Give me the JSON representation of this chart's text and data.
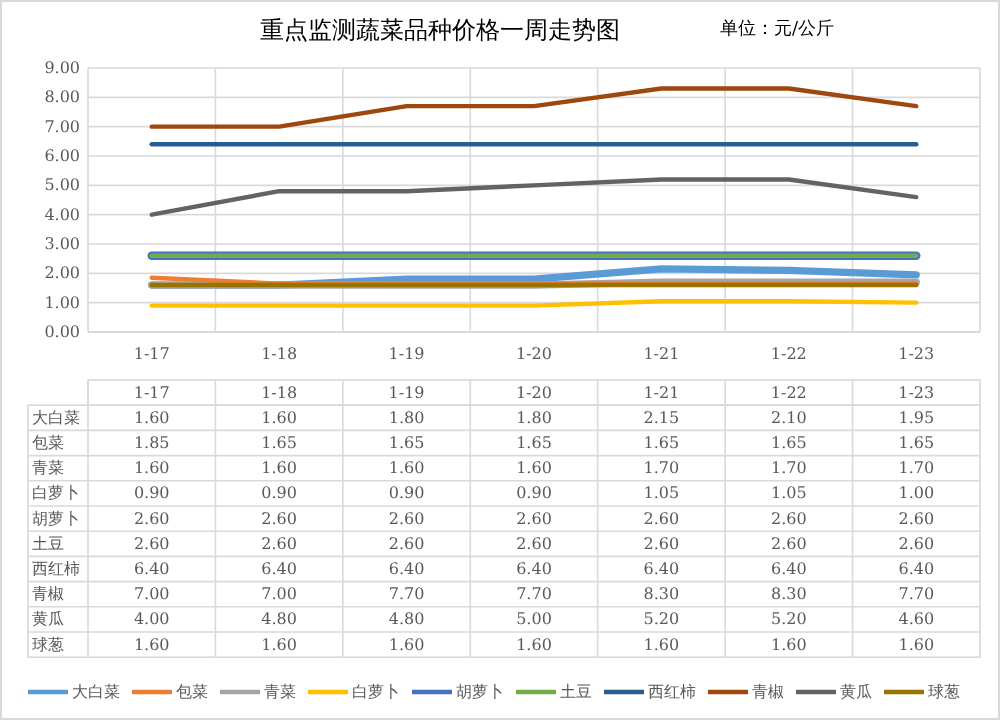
{
  "chart_data": {
    "type": "line",
    "title": "重点监测蔬菜品种价格一周走势图",
    "subtitle": "单位：元/公斤",
    "categories": [
      "1-17",
      "1-18",
      "1-19",
      "1-20",
      "1-21",
      "1-22",
      "1-23"
    ],
    "series": [
      {
        "name": "大白菜",
        "color": "#5b9bd5",
        "values": [
          1.6,
          1.6,
          1.8,
          1.8,
          2.15,
          2.1,
          1.95
        ],
        "value_labels": [
          "1.60",
          "1.60",
          "1.80",
          "1.80",
          "2.15",
          "2.10",
          "1.95"
        ]
      },
      {
        "name": "包菜",
        "color": "#ed7d31",
        "values": [
          1.85,
          1.65,
          1.65,
          1.65,
          1.65,
          1.65,
          1.65
        ],
        "value_labels": [
          "1.85",
          "1.65",
          "1.65",
          "1.65",
          "1.65",
          "1.65",
          "1.65"
        ]
      },
      {
        "name": "青菜",
        "color": "#a5a5a5",
        "values": [
          1.6,
          1.6,
          1.6,
          1.6,
          1.7,
          1.7,
          1.7
        ],
        "value_labels": [
          "1.60",
          "1.60",
          "1.60",
          "1.60",
          "1.70",
          "1.70",
          "1.70"
        ]
      },
      {
        "name": "白萝卜",
        "color": "#ffc000",
        "values": [
          0.9,
          0.9,
          0.9,
          0.9,
          1.05,
          1.05,
          1.0
        ],
        "value_labels": [
          "0.90",
          "0.90",
          "0.90",
          "0.90",
          "1.05",
          "1.05",
          "1.00"
        ]
      },
      {
        "name": "胡萝卜",
        "color": "#4472c4",
        "values": [
          2.6,
          2.6,
          2.6,
          2.6,
          2.6,
          2.6,
          2.6
        ],
        "value_labels": [
          "2.60",
          "2.60",
          "2.60",
          "2.60",
          "2.60",
          "2.60",
          "2.60"
        ]
      },
      {
        "name": "土豆",
        "color": "#70ad47",
        "values": [
          2.6,
          2.6,
          2.6,
          2.6,
          2.6,
          2.6,
          2.6
        ],
        "value_labels": [
          "2.60",
          "2.60",
          "2.60",
          "2.60",
          "2.60",
          "2.60",
          "2.60"
        ]
      },
      {
        "name": "西红柿",
        "color": "#255e91",
        "values": [
          6.4,
          6.4,
          6.4,
          6.4,
          6.4,
          6.4,
          6.4
        ],
        "value_labels": [
          "6.40",
          "6.40",
          "6.40",
          "6.40",
          "6.40",
          "6.40",
          "6.40"
        ]
      },
      {
        "name": "青椒",
        "color": "#9e480e",
        "values": [
          7.0,
          7.0,
          7.7,
          7.7,
          8.3,
          8.3,
          7.7
        ],
        "value_labels": [
          "7.00",
          "7.00",
          "7.70",
          "7.70",
          "8.30",
          "8.30",
          "7.70"
        ]
      },
      {
        "name": "黄瓜",
        "color": "#636363",
        "values": [
          4.0,
          4.8,
          4.8,
          5.0,
          5.2,
          5.2,
          4.6
        ],
        "value_labels": [
          "4.00",
          "4.80",
          "4.80",
          "5.00",
          "5.20",
          "5.20",
          "4.60"
        ]
      },
      {
        "name": "球葱",
        "color": "#997300",
        "values": [
          1.6,
          1.6,
          1.6,
          1.6,
          1.6,
          1.6,
          1.6
        ],
        "value_labels": [
          "1.60",
          "1.60",
          "1.60",
          "1.60",
          "1.60",
          "1.60",
          "1.60"
        ]
      }
    ],
    "ylim": [
      0,
      9
    ],
    "yticks": [
      {
        "value": 0,
        "label": "0.00"
      },
      {
        "value": 1,
        "label": "1.00"
      },
      {
        "value": 2,
        "label": "2.00"
      },
      {
        "value": 3,
        "label": "3.00"
      },
      {
        "value": 4,
        "label": "4.00"
      },
      {
        "value": 5,
        "label": "5.00"
      },
      {
        "value": 6,
        "label": "6.00"
      },
      {
        "value": 7,
        "label": "7.00"
      },
      {
        "value": 8,
        "label": "8.00"
      },
      {
        "value": 9,
        "label": "9.00"
      }
    ],
    "grid": true,
    "legend": "bottom",
    "marker": "none",
    "line_style": "solid"
  }
}
